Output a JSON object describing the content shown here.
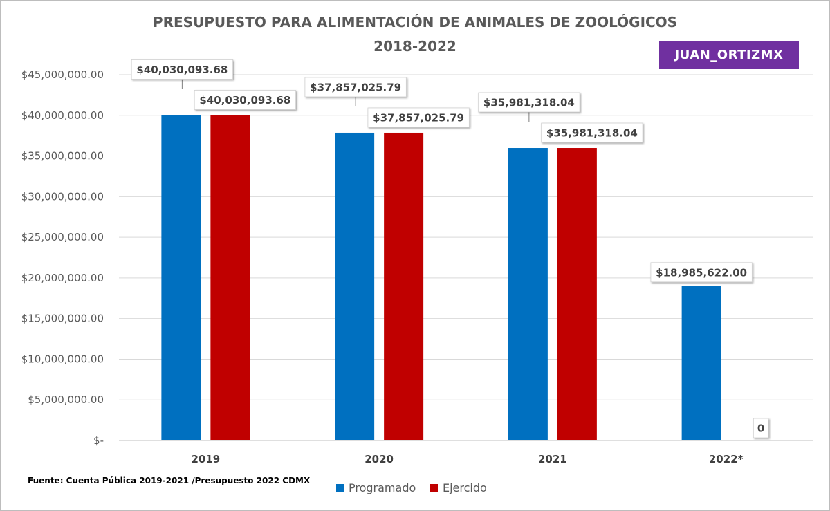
{
  "chart_data": {
    "type": "bar",
    "title": "PRESUPUESTO PARA ALIMENTACIÓN DE ANIMALES DE ZOOLÓGICOS",
    "subtitle": "2018-2022",
    "categories": [
      "2019",
      "2020",
      "2021",
      "2022*"
    ],
    "series": [
      {
        "name": "Programado",
        "color": "#0070c0",
        "values": [
          40030093.68,
          37857025.79,
          35981318.04,
          18985622.0
        ],
        "labels": [
          "$40,030,093.68",
          "$37,857,025.79",
          "$35,981,318.04",
          "$18,985,622.00"
        ]
      },
      {
        "name": "Ejercido",
        "color": "#c00000",
        "values": [
          40030093.68,
          37857025.79,
          35981318.04,
          0
        ],
        "labels": [
          "$40,030,093.68",
          "$37,857,025.79",
          "$35,981,318.04",
          "0"
        ]
      }
    ],
    "ylim": [
      0,
      45000000
    ],
    "ytick_values": [
      0,
      5000000,
      10000000,
      15000000,
      20000000,
      25000000,
      30000000,
      35000000,
      40000000,
      45000000
    ],
    "ytick_labels": [
      "$-",
      "$5,000,000.00",
      "$10,000,000.00",
      "$15,000,000.00",
      "$20,000,000.00",
      "$25,000,000.00",
      "$30,000,000.00",
      "$35,000,000.00",
      "$40,000,000.00",
      "$45,000,000.00"
    ],
    "grid": true,
    "legend_position": "bottom"
  },
  "watermark": "JUAN_ORTIZMX",
  "source_note": "Fuente: Cuenta Pública 2019-2021 /Presupuesto 2022 CDMX"
}
